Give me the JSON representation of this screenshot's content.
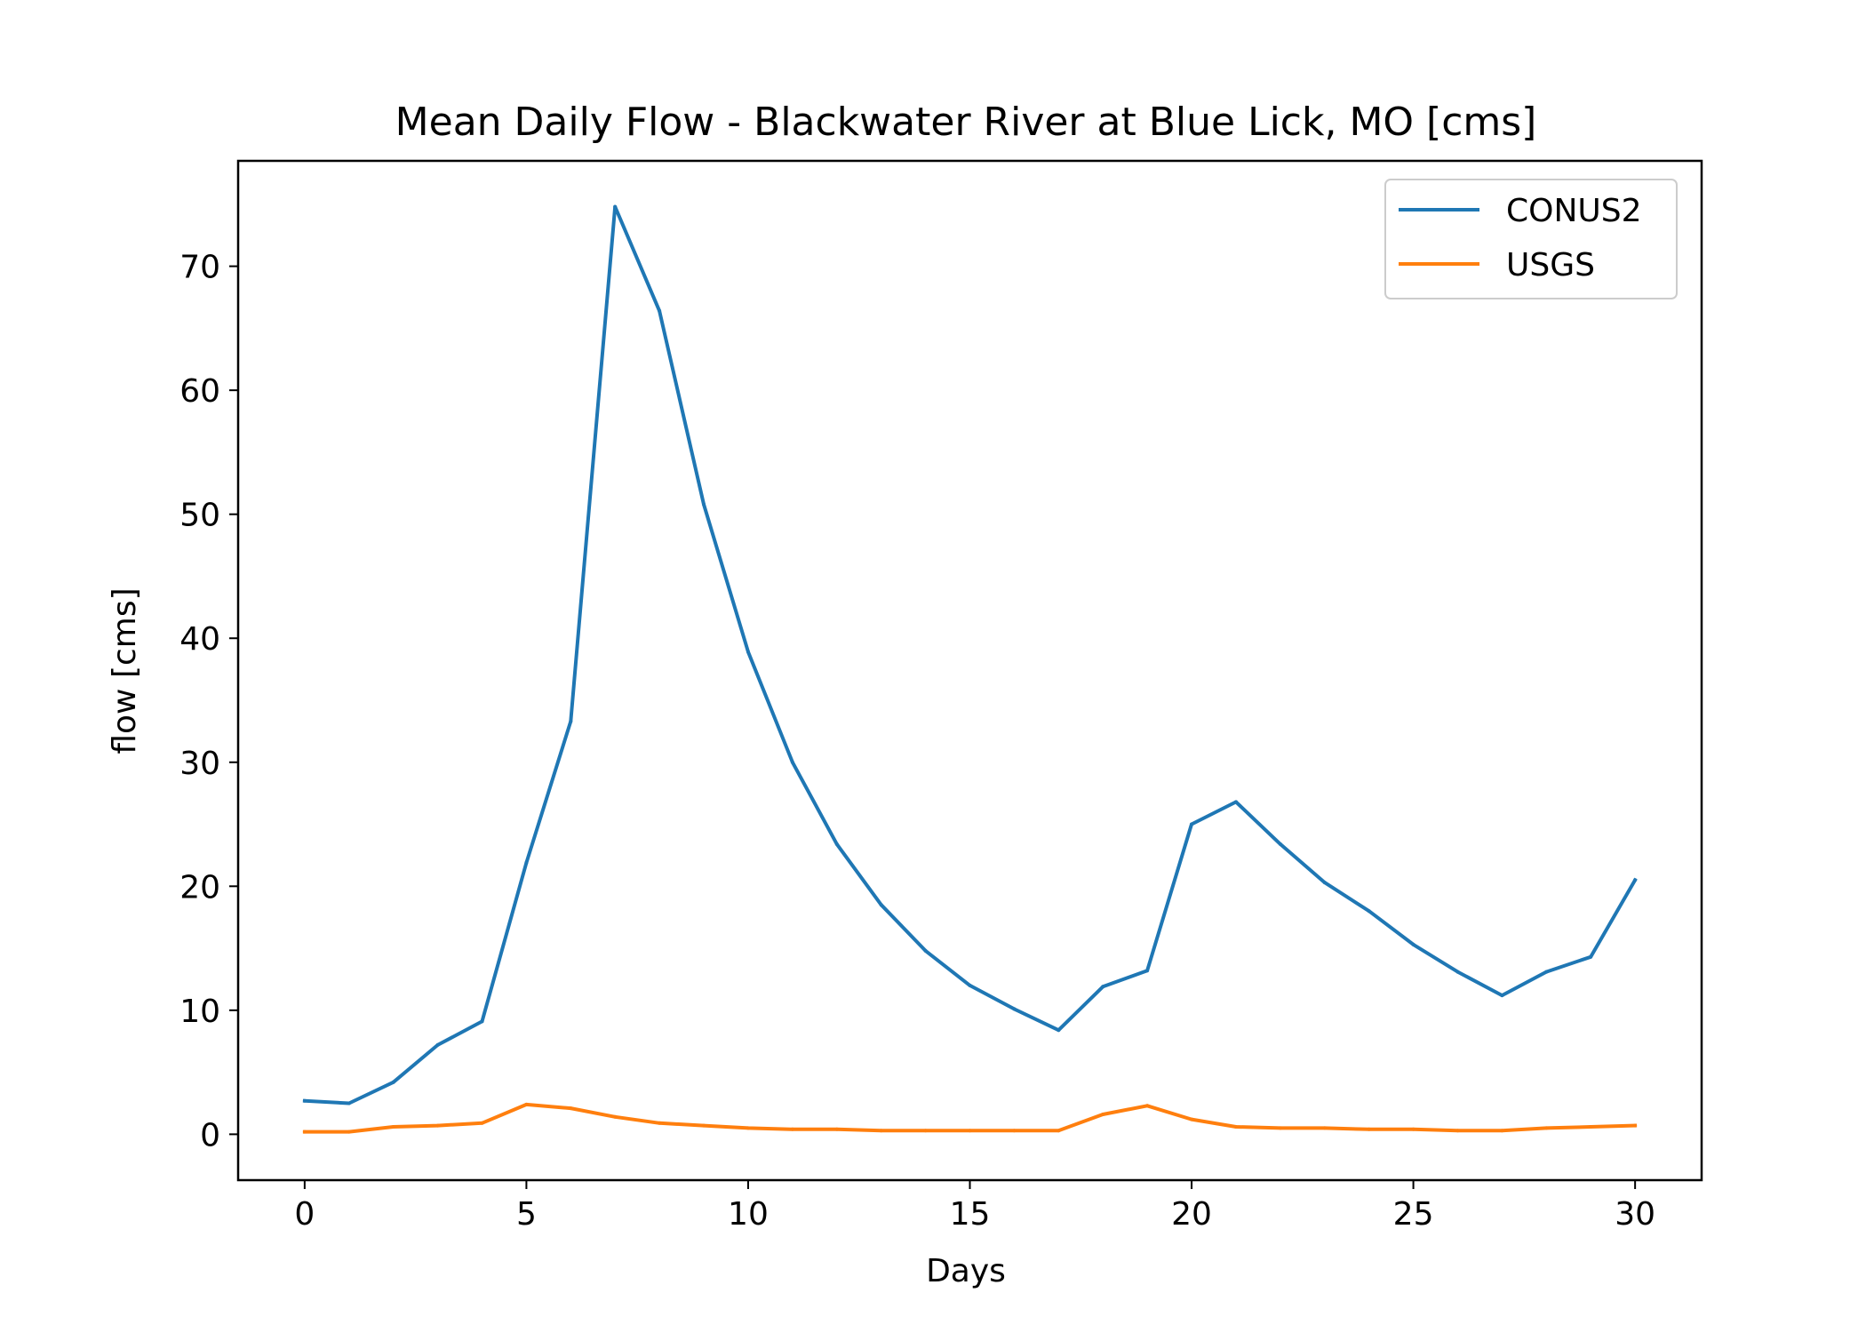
{
  "chart_data": {
    "type": "line",
    "title": "Mean Daily Flow - Blackwater River at Blue Lick, MO [cms]",
    "xlabel": "Days",
    "ylabel": "flow [cms]",
    "xlim": [
      -1.5,
      31.5
    ],
    "ylim": [
      -3.7,
      78.5
    ],
    "xticks": [
      0,
      5,
      10,
      15,
      20,
      25,
      30
    ],
    "yticks": [
      0,
      10,
      20,
      30,
      40,
      50,
      60,
      70
    ],
    "grid": false,
    "legend_position": "top-right",
    "x": [
      0,
      1,
      2,
      3,
      4,
      5,
      6,
      7,
      8,
      9,
      10,
      11,
      12,
      13,
      14,
      15,
      16,
      17,
      18,
      19,
      20,
      21,
      22,
      23,
      24,
      25,
      26,
      27,
      28,
      29,
      30
    ],
    "series": [
      {
        "name": "CONUS2",
        "color": "#1f77b4",
        "values": [
          2.7,
          2.5,
          4.2,
          7.2,
          9.1,
          21.9,
          33.3,
          74.8,
          66.4,
          50.8,
          38.9,
          30.0,
          23.4,
          18.5,
          14.8,
          12.0,
          10.1,
          8.4,
          11.9,
          13.2,
          25.0,
          26.8,
          23.4,
          20.3,
          18.0,
          15.3,
          13.1,
          11.2,
          13.1,
          14.3,
          20.5
        ]
      },
      {
        "name": "USGS",
        "color": "#ff7f0e",
        "values": [
          0.2,
          0.2,
          0.6,
          0.7,
          0.9,
          2.4,
          2.1,
          1.4,
          0.9,
          0.7,
          0.5,
          0.4,
          0.4,
          0.3,
          0.3,
          0.3,
          0.3,
          0.3,
          1.6,
          2.3,
          1.2,
          0.6,
          0.5,
          0.5,
          0.4,
          0.4,
          0.3,
          0.3,
          0.5,
          0.6,
          0.7
        ]
      }
    ]
  }
}
